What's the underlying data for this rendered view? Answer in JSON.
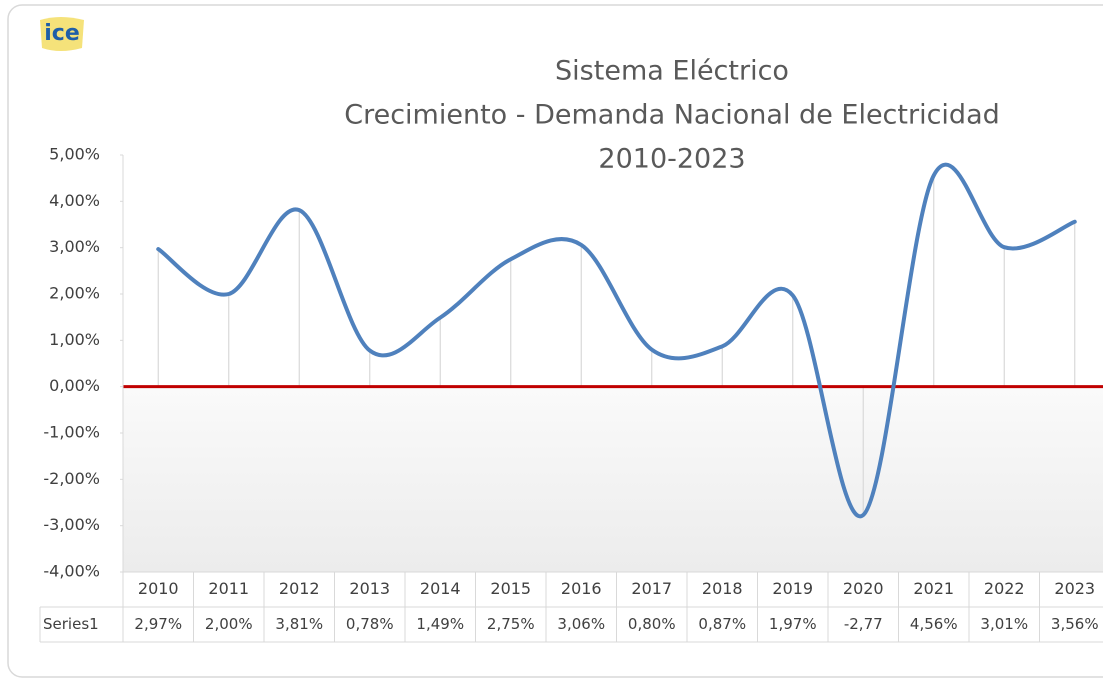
{
  "chart_data": {
    "type": "line",
    "logo": "ice",
    "title": [
      "Sistema Eléctrico",
      "Crecimiento - Demanda Nacional de Electricidad",
      "2010-2023"
    ],
    "categories": [
      "2010",
      "2011",
      "2012",
      "2013",
      "2014",
      "2015",
      "2016",
      "2017",
      "2018",
      "2019",
      "2020",
      "2021",
      "2022",
      "2023"
    ],
    "series": [
      {
        "name": "Series1",
        "color": "#4f81bd",
        "values": [
          2.97,
          2.0,
          3.81,
          0.78,
          1.49,
          2.75,
          3.06,
          0.8,
          0.87,
          1.97,
          -2.77,
          4.56,
          3.01,
          3.56
        ],
        "value_labels": [
          "2,97%",
          "2,00%",
          "3,81%",
          "0,78%",
          "1,49%",
          "2,75%",
          "3,06%",
          "0,80%",
          "0,87%",
          "1,97%",
          "-2,77",
          "4,56%",
          "3,01%",
          "3,56%"
        ]
      }
    ],
    "ylim": [
      -4,
      5
    ],
    "yticks": [
      {
        "value": -4,
        "label": "-4,00%"
      },
      {
        "value": -3,
        "label": "-3,00%"
      },
      {
        "value": -2,
        "label": "-2,00%"
      },
      {
        "value": -1,
        "label": "-1,00%"
      },
      {
        "value": 0,
        "label": "0,00%"
      },
      {
        "value": 1,
        "label": "1,00%"
      },
      {
        "value": 2,
        "label": "2,00%"
      },
      {
        "value": 3,
        "label": "3,00%"
      },
      {
        "value": 4,
        "label": "4,00%"
      },
      {
        "value": 5,
        "label": "5,00%"
      }
    ],
    "zero_line_color": "#c00000",
    "drop_lines": true
  }
}
